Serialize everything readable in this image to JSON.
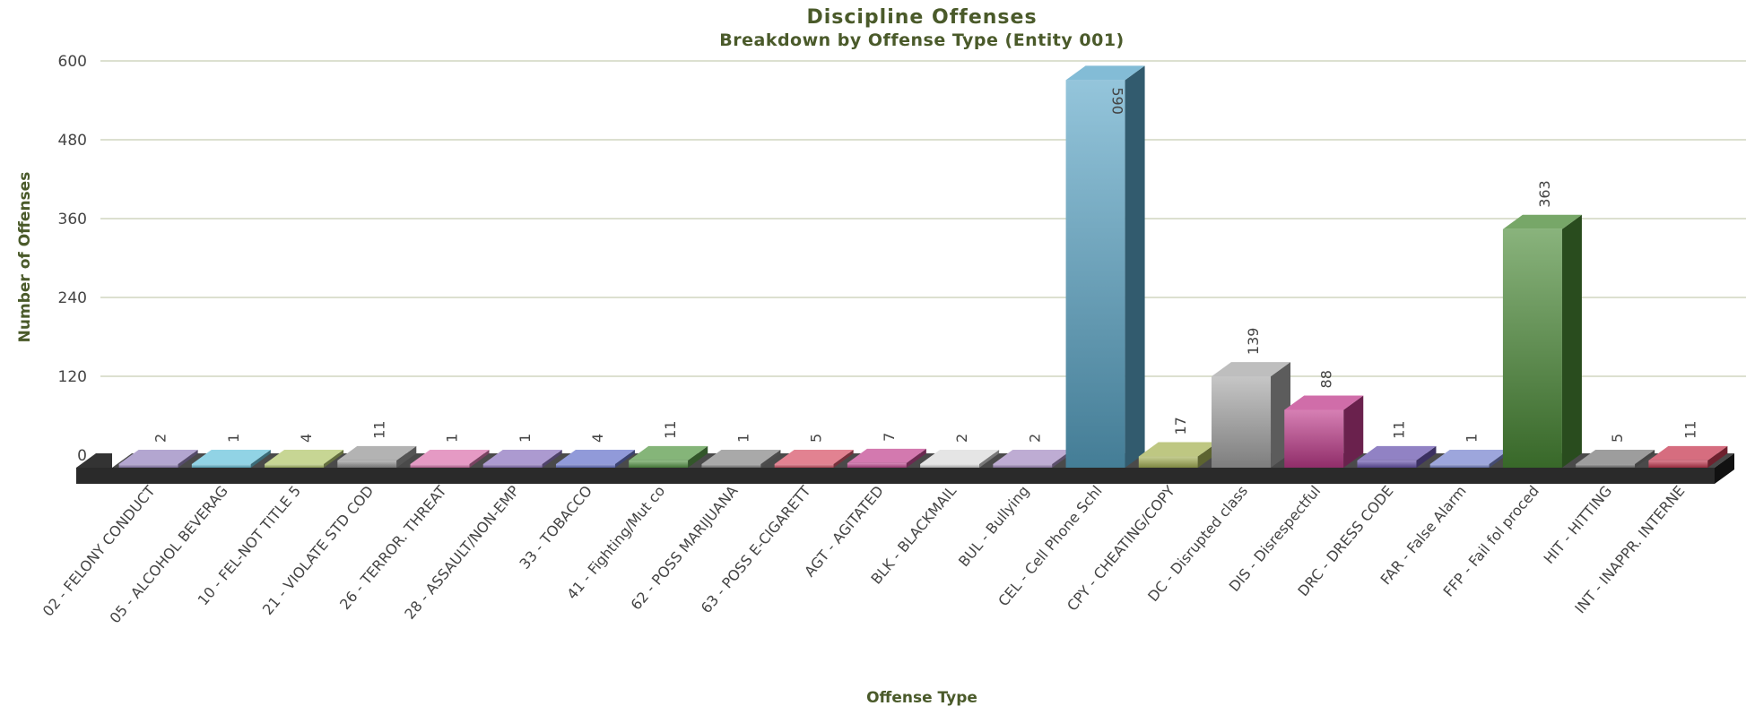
{
  "chart_data": {
    "type": "bar",
    "title": "Discipline Offenses",
    "subtitle": "Breakdown by Offense Type (Entity 001)",
    "xlabel": "Offense Type",
    "ylabel": "Number of Offenses",
    "ylim": [
      0,
      600
    ],
    "yticks": [
      0,
      120,
      240,
      360,
      480,
      600
    ],
    "grid": true,
    "categories": [
      "02 - FELONY CONDUCT",
      "05 - ALCOHOL BEVERAG",
      "10 - FEL-NOT TITLE 5",
      "21 - VIOLATE STD COD",
      "26 - TERROR. THREAT",
      "28 - ASSAULT/NON-EMP",
      "33 - TOBACCO",
      "41 - Fighting/Mut co",
      "62 - POSS MARIJUANA",
      "63 - POSS E-CIGARETT",
      "AGT - AGITATED",
      "BLK - BLACKMAIL",
      "BUL - Bullying",
      "CEL - Cell Phone Schl",
      "CPY - CHEATING/COPY",
      "DC - Disrupted class",
      "DIS - Disrespectful",
      "DRC - DRESS CODE",
      "FAR - False Alarm",
      "FFP - Fail fol proced",
      "HIT - HITTING",
      "INT - INAPPR. INTERNE"
    ],
    "values": [
      2,
      1,
      4,
      11,
      1,
      1,
      4,
      11,
      1,
      5,
      7,
      2,
      2,
      590,
      17,
      139,
      88,
      11,
      1,
      363,
      5,
      11
    ],
    "value_labels": [
      "2",
      "1",
      "4",
      "11",
      "1",
      "1",
      "4",
      "11",
      "1",
      "5",
      "7",
      "2",
      "2",
      "590",
      "17",
      "139",
      "88",
      "11",
      "1",
      "363",
      "5",
      "11"
    ],
    "bar_colors": [
      "#9a88c0",
      "#6cc4dc",
      "#b4c870",
      "#9a9a9a",
      "#dc78b0",
      "#9078c0",
      "#6c78cc",
      "#5c9c4c",
      "#8c8c8c",
      "#d8586c",
      "#c44c94",
      "#dcdcdc",
      "#a890c4",
      "#5aa6c8",
      "#a8b458",
      "#a8a8a8",
      "#c03c8c",
      "#6c58b0",
      "#7c88d0",
      "#4a8a36",
      "#7c7c7c",
      "#c83c54"
    ]
  }
}
